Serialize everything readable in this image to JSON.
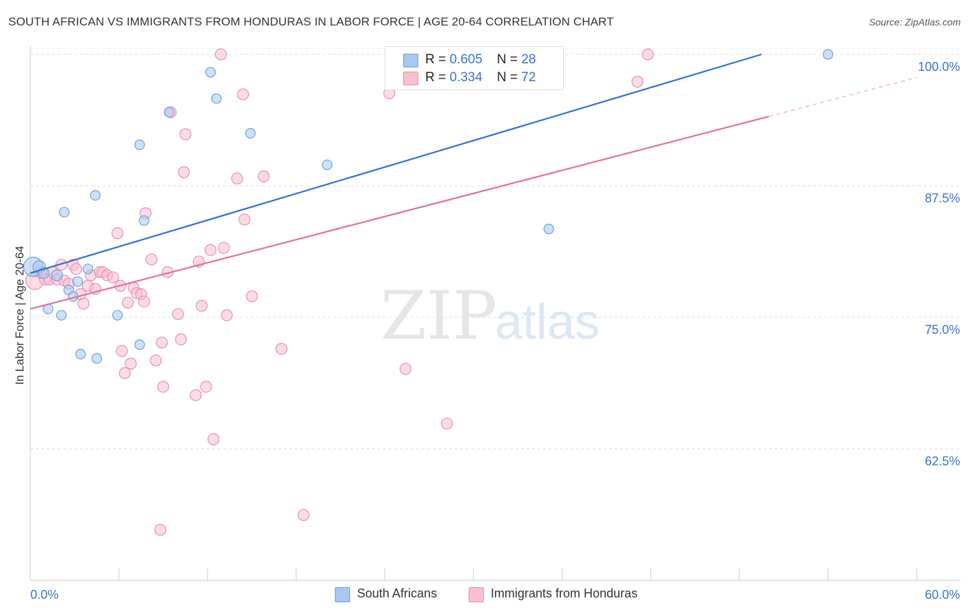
{
  "title": "SOUTH AFRICAN VS IMMIGRANTS FROM HONDURAS IN LABOR FORCE | AGE 20-64 CORRELATION CHART",
  "source": "Source: ZipAtlas.com",
  "watermark": {
    "zip": "ZIP",
    "atlas": "atlas"
  },
  "colors": {
    "blue_fill": "#a8c8f0",
    "blue_stroke": "#6f9fdc",
    "blue_line": "#2e6fd0",
    "pink_fill": "#f7bfd0",
    "pink_stroke": "#e890ad",
    "pink_line": "#e0709a",
    "tick_text": "#3b72c8",
    "grid": "#dddddd"
  },
  "legend": {
    "rows": [
      {
        "r_label": "R = ",
        "r_value": "0.605",
        "n_label": "N = ",
        "n_value": "28"
      },
      {
        "r_label": "R = ",
        "r_value": "0.334",
        "n_label": "N = ",
        "n_value": "72"
      }
    ]
  },
  "bottom_legend": [
    "South Africans",
    "Immigrants from Honduras"
  ],
  "chart_data": {
    "type": "scatter",
    "title": "SOUTH AFRICAN VS IMMIGRANTS FROM HONDURAS IN LABOR FORCE | AGE 20-64 CORRELATION CHART",
    "xlabel": "",
    "ylabel": "In Labor Force | Age 20-64",
    "xlim": [
      0,
      60
    ],
    "ylim": [
      50,
      101
    ],
    "x_tick_labels": [
      "0.0%",
      "60.0%"
    ],
    "y_ticks": [
      62.5,
      75.0,
      87.5,
      100.0
    ],
    "y_tick_labels": [
      "62.5%",
      "75.0%",
      "87.5%",
      "100.0%"
    ],
    "grid": true,
    "legend_position": "top-center",
    "series": [
      {
        "name": "South Africans",
        "r": 0.605,
        "n": 28,
        "trend": {
          "x": [
            0,
            49.5
          ],
          "y": [
            79.2,
            100.0
          ]
        },
        "points": [
          [
            0.2,
            79.8,
            14
          ],
          [
            0.6,
            79.8,
            9
          ],
          [
            0.9,
            79.2,
            8
          ],
          [
            1.2,
            75.8,
            7
          ],
          [
            1.8,
            79.0,
            8
          ],
          [
            2.1,
            75.2,
            7
          ],
          [
            2.3,
            85.0,
            7
          ],
          [
            2.6,
            77.6,
            7
          ],
          [
            2.9,
            77.0,
            7
          ],
          [
            3.2,
            78.4,
            7
          ],
          [
            3.4,
            71.5,
            7
          ],
          [
            3.9,
            79.6,
            7
          ],
          [
            4.4,
            86.6,
            7
          ],
          [
            4.5,
            71.1,
            7
          ],
          [
            5.9,
            75.2,
            7
          ],
          [
            7.4,
            91.4,
            7
          ],
          [
            7.4,
            72.4,
            7
          ],
          [
            7.7,
            84.2,
            7
          ],
          [
            9.4,
            94.5,
            7
          ],
          [
            12.2,
            98.3,
            7
          ],
          [
            12.6,
            95.8,
            7
          ],
          [
            14.9,
            92.5,
            7
          ],
          [
            20.1,
            89.5,
            7
          ],
          [
            35.1,
            83.4,
            7
          ],
          [
            54.0,
            100.0,
            7
          ]
        ]
      },
      {
        "name": "Immigrants from Honduras",
        "r": 0.334,
        "n": 72,
        "trend": {
          "x": [
            0,
            50.0
          ],
          "y": [
            75.8,
            94.1
          ]
        },
        "trend_dashed": {
          "x": [
            50.0,
            60.0
          ],
          "y": [
            94.1,
            97.8
          ]
        },
        "points": [
          [
            0.3,
            78.5,
            13
          ],
          [
            0.7,
            79.3,
            9
          ],
          [
            1.0,
            78.6,
            8
          ],
          [
            1.3,
            78.6,
            8
          ],
          [
            1.5,
            79.3,
            8
          ],
          [
            1.8,
            78.6,
            8
          ],
          [
            2.1,
            80.0,
            8
          ],
          [
            2.3,
            78.5,
            8
          ],
          [
            2.6,
            78.2,
            8
          ],
          [
            2.9,
            80.0,
            8
          ],
          [
            3.1,
            79.6,
            8
          ],
          [
            3.4,
            77.2,
            8
          ],
          [
            3.6,
            76.3,
            8
          ],
          [
            3.9,
            78.0,
            8
          ],
          [
            4.1,
            79.0,
            8
          ],
          [
            4.4,
            77.7,
            8
          ],
          [
            4.7,
            79.3,
            8
          ],
          [
            4.9,
            79.3,
            8
          ],
          [
            5.2,
            79.0,
            8
          ],
          [
            5.6,
            78.8,
            8
          ],
          [
            5.9,
            83.0,
            8
          ],
          [
            6.1,
            78.0,
            8
          ],
          [
            6.2,
            71.8,
            8
          ],
          [
            6.4,
            69.7,
            8
          ],
          [
            6.6,
            76.4,
            8
          ],
          [
            6.8,
            70.6,
            8
          ],
          [
            7.0,
            77.8,
            8
          ],
          [
            7.2,
            77.3,
            8
          ],
          [
            7.5,
            77.2,
            8
          ],
          [
            7.7,
            76.5,
            8
          ],
          [
            7.8,
            84.9,
            8
          ],
          [
            8.2,
            80.5,
            8
          ],
          [
            8.5,
            70.9,
            8
          ],
          [
            8.9,
            72.6,
            8
          ],
          [
            9.0,
            68.4,
            8
          ],
          [
            9.3,
            79.3,
            8
          ],
          [
            9.5,
            94.5,
            8
          ],
          [
            10.0,
            75.3,
            8
          ],
          [
            10.2,
            72.9,
            8
          ],
          [
            10.4,
            88.8,
            8
          ],
          [
            10.5,
            92.4,
            8
          ],
          [
            11.2,
            67.6,
            8
          ],
          [
            11.4,
            80.3,
            8
          ],
          [
            11.6,
            76.1,
            8
          ],
          [
            11.9,
            68.4,
            8
          ],
          [
            12.2,
            81.4,
            8
          ],
          [
            12.4,
            63.4,
            8
          ],
          [
            12.9,
            100.0,
            8
          ],
          [
            13.1,
            81.6,
            8
          ],
          [
            13.3,
            75.2,
            8
          ],
          [
            14.0,
            88.2,
            8
          ],
          [
            14.4,
            96.2,
            8
          ],
          [
            14.5,
            84.3,
            8
          ],
          [
            15.0,
            77.0,
            8
          ],
          [
            15.8,
            88.4,
            8
          ],
          [
            17.0,
            72.0,
            8
          ],
          [
            18.5,
            56.2,
            8
          ],
          [
            24.3,
            96.3,
            8
          ],
          [
            24.5,
            100.0,
            8
          ],
          [
            24.9,
            98.2,
            8
          ],
          [
            25.4,
            70.1,
            8
          ],
          [
            28.2,
            64.9,
            8
          ],
          [
            41.1,
            97.4,
            8
          ],
          [
            41.8,
            100.0,
            8
          ],
          [
            8.8,
            54.8,
            8
          ]
        ]
      }
    ]
  }
}
